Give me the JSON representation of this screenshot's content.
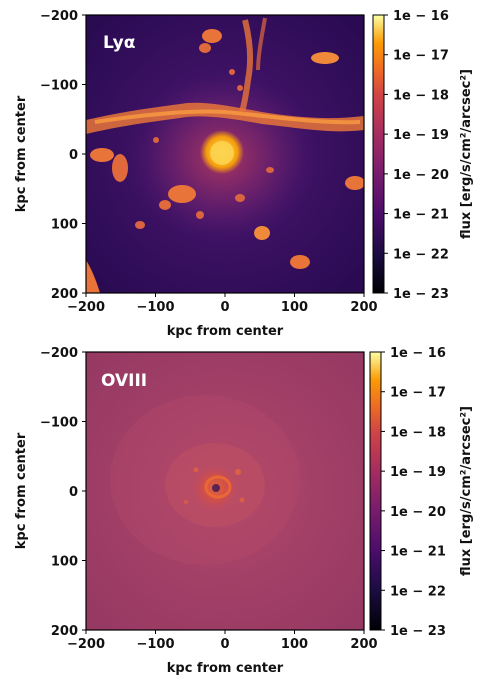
{
  "chart_data": [
    {
      "type": "heatmap",
      "panel_label": "Lyα",
      "xlabel": "kpc from center",
      "ylabel": "kpc from center",
      "xlim": [
        -200,
        200
      ],
      "ylim": [
        -200,
        200
      ],
      "x_ticks": [
        "−200",
        "−100",
        "0",
        "100",
        "200"
      ],
      "y_ticks": [
        "−200",
        "−100",
        "0",
        "100",
        "200"
      ],
      "colorbar": {
        "label": "flux [erg/s/cm²/arcsec²]",
        "range_log10": [
          -23,
          -16
        ],
        "ticks": [
          "1e − 16",
          "1e − 17",
          "1e − 18",
          "1e − 19",
          "1e − 20",
          "1e − 21",
          "1e − 22",
          "1e − 23"
        ],
        "colormap": "inferno"
      },
      "background_log10": -21.3,
      "bright_core_log10": -16.5
    },
    {
      "type": "heatmap",
      "panel_label": "OVIII",
      "xlabel": "kpc from center",
      "ylabel": "kpc from center",
      "xlim": [
        -200,
        200
      ],
      "ylim": [
        -200,
        200
      ],
      "x_ticks": [
        "−200",
        "−100",
        "0",
        "100",
        "200"
      ],
      "y_ticks": [
        "−200",
        "−100",
        "0",
        "100",
        "200"
      ],
      "colorbar": {
        "label": "flux [erg/s/cm²/arcsec²]",
        "range_log10": [
          -23,
          -16
        ],
        "ticks": [
          "1e − 16",
          "1e − 17",
          "1e − 18",
          "1e − 19",
          "1e − 20",
          "1e − 21",
          "1e − 22",
          "1e − 23"
        ],
        "colormap": "inferno"
      },
      "background_log10": -19.8,
      "bright_core_log10": -18.3
    }
  ]
}
